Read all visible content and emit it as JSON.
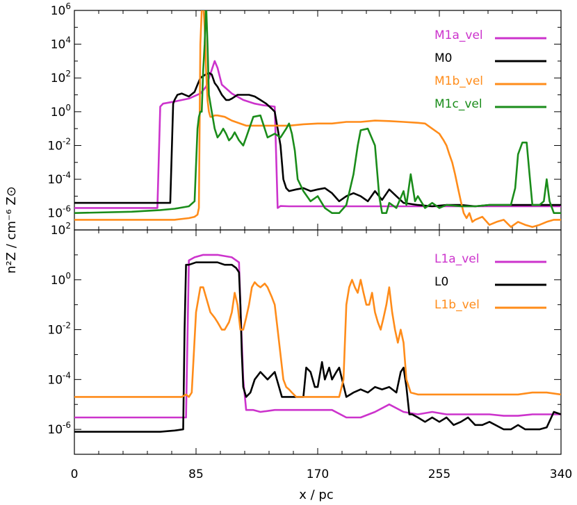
{
  "chart_data": [
    {
      "type": "line",
      "panel": "top",
      "xlim": [
        0,
        340
      ],
      "ylim": [
        1e-07,
        1000000.0
      ],
      "yscale": "log",
      "legend_placement": "top-right",
      "series": [
        {
          "name": "M1a_vel",
          "color": "#cc33cc",
          "x": [
            0,
            58,
            60,
            62,
            70,
            80,
            88,
            92,
            96,
            98,
            100,
            103,
            110,
            118,
            126,
            132,
            138,
            140,
            142,
            144,
            150,
            170,
            200,
            250,
            300,
            340
          ],
          "y": [
            2e-06,
            2e-06,
            2,
            3,
            4,
            6,
            12,
            30,
            300,
            1000,
            400,
            40,
            12,
            5,
            3,
            2.4,
            2.1,
            2,
            2e-06,
            2.6e-06,
            2.5e-06,
            2.5e-06,
            2.5e-06,
            2.5e-06,
            2.5e-06,
            2.5e-06
          ]
        },
        {
          "name": "M0",
          "color": "#000000",
          "x": [
            0,
            67,
            69,
            70,
            72,
            75,
            80,
            84,
            86,
            88,
            91,
            94,
            96,
            98,
            100,
            103,
            106,
            108,
            110,
            114,
            118,
            122,
            126,
            130,
            134,
            138,
            140,
            142,
            144,
            146,
            148,
            150,
            155,
            160,
            165,
            170,
            175,
            180,
            185,
            190,
            195,
            200,
            205,
            210,
            215,
            220,
            225,
            230,
            240,
            250,
            260,
            270,
            280,
            290,
            300,
            310,
            320,
            330,
            340
          ],
          "y": [
            4e-06,
            4e-06,
            3,
            5,
            10,
            12,
            8,
            15,
            40,
            100,
            150,
            200,
            160,
            50,
            30,
            10,
            5,
            5,
            6,
            10,
            10,
            10,
            8,
            5,
            3,
            1.5,
            1,
            0.1,
            0.01,
            0.0001,
            3e-05,
            2e-05,
            2.5e-05,
            3e-05,
            2e-05,
            2.5e-05,
            3e-05,
            1.5e-05,
            5e-06,
            1e-05,
            1.5e-05,
            1e-05,
            5e-06,
            2e-05,
            6e-06,
            2.5e-05,
            1e-05,
            4e-06,
            3e-06,
            2.5e-06,
            3e-06,
            3e-06,
            2.5e-06,
            3e-06,
            3e-06,
            3e-06,
            3e-06,
            3e-06,
            3e-06
          ]
        },
        {
          "name": "M1b_vel",
          "color": "#ff8c1a",
          "x": [
            0,
            60,
            70,
            80,
            84,
            86,
            87,
            88,
            89,
            90,
            91,
            92,
            93,
            94,
            95,
            96,
            98,
            100,
            105,
            110,
            120,
            130,
            140,
            150,
            160,
            170,
            180,
            190,
            200,
            210,
            220,
            230,
            240,
            245,
            250,
            255,
            258,
            260,
            262,
            264,
            266,
            268,
            270,
            272,
            274,
            276,
            278,
            280,
            285,
            290,
            295,
            300,
            305,
            310,
            315,
            320,
            325,
            330,
            335,
            340
          ],
          "y": [
            4e-07,
            4e-07,
            4e-07,
            5e-07,
            6e-07,
            8e-07,
            2e-06,
            10000.0,
            1000000.0,
            3000000.0,
            100000.0,
            300,
            5,
            1,
            0.5,
            0.5,
            0.6,
            0.6,
            0.5,
            0.3,
            0.15,
            0.15,
            0.15,
            0.15,
            0.18,
            0.2,
            0.2,
            0.25,
            0.25,
            0.3,
            0.28,
            0.25,
            0.22,
            0.2,
            0.1,
            0.05,
            0.02,
            0.01,
            0.003,
            0.001,
            0.0002,
            3e-05,
            5e-06,
            1e-06,
            5e-07,
            1e-06,
            3e-07,
            4e-07,
            6e-07,
            2e-07,
            3e-07,
            4e-07,
            1.5e-07,
            3e-07,
            2e-07,
            1.5e-07,
            2e-07,
            3e-07,
            4e-07,
            4e-07
          ]
        },
        {
          "name": "M1c_vel",
          "color": "#1a8c1a",
          "x": [
            0,
            40,
            60,
            70,
            80,
            84,
            86,
            87,
            88,
            89,
            90,
            91,
            92,
            93,
            94,
            96,
            98,
            100,
            102,
            104,
            106,
            108,
            110,
            112,
            115,
            118,
            120,
            125,
            130,
            135,
            140,
            144,
            148,
            150,
            152,
            154,
            156,
            160,
            165,
            170,
            175,
            180,
            185,
            190,
            195,
            198,
            200,
            205,
            210,
            213,
            215,
            218,
            220,
            225,
            230,
            232,
            235,
            238,
            240,
            245,
            250,
            255,
            260,
            270,
            280,
            290,
            300,
            305,
            308,
            310,
            313,
            316,
            318,
            320,
            325,
            328,
            330,
            332,
            335,
            340
          ],
          "y": [
            1e-06,
            1.2e-06,
            1.5e-06,
            1.8e-06,
            2.5e-06,
            5e-06,
            0.1,
            0.5,
            1,
            1,
            300,
            10000.0,
            3000000.0,
            10000.0,
            10,
            1,
            0.1,
            0.03,
            0.05,
            0.1,
            0.05,
            0.02,
            0.03,
            0.06,
            0.02,
            0.01,
            0.03,
            0.5,
            0.6,
            0.03,
            0.05,
            0.03,
            0.1,
            0.2,
            0.05,
            0.005,
            0.0001,
            2e-05,
            5e-06,
            1e-05,
            2e-06,
            1e-06,
            1e-06,
            3e-06,
            0.0002,
            0.01,
            0.08,
            0.1,
            0.01,
            1e-05,
            1e-06,
            1e-06,
            4e-06,
            2e-06,
            2e-05,
            3e-06,
            0.0002,
            5e-06,
            1e-05,
            2e-06,
            4e-06,
            2e-06,
            3e-06,
            2.5e-06,
            2.5e-06,
            3e-06,
            3e-06,
            3e-06,
            3e-05,
            0.003,
            0.015,
            0.015,
            0.0002,
            3e-06,
            3e-06,
            5e-06,
            0.0001,
            5e-06,
            1e-06,
            1e-06
          ]
        }
      ]
    },
    {
      "type": "line",
      "panel": "bottom",
      "xlim": [
        0,
        340
      ],
      "ylim": [
        1e-07,
        100.0
      ],
      "yscale": "log",
      "legend_placement": "top-right",
      "series": [
        {
          "name": "L1a_vel",
          "color": "#cc33cc",
          "x": [
            0,
            70,
            76,
            78,
            80,
            84,
            90,
            100,
            110,
            115,
            116,
            118,
            120,
            125,
            130,
            140,
            150,
            160,
            170,
            180,
            190,
            200,
            210,
            220,
            230,
            240,
            250,
            260,
            270,
            280,
            290,
            300,
            310,
            320,
            330,
            340
          ],
          "y": [
            3e-06,
            3e-06,
            3e-06,
            3e-06,
            6,
            8,
            10,
            10,
            8,
            5,
            0.1,
            0.0001,
            6e-06,
            6e-06,
            5e-06,
            6e-06,
            6e-06,
            6e-06,
            6e-06,
            6e-06,
            3e-06,
            3e-06,
            5e-06,
            1e-05,
            5e-06,
            4e-06,
            5e-06,
            4e-06,
            4e-06,
            4e-06,
            4e-06,
            3.5e-06,
            3.5e-06,
            4e-06,
            4e-06,
            4e-06
          ]
        },
        {
          "name": "L0",
          "color": "#000000",
          "x": [
            0,
            60,
            70,
            76,
            77,
            78,
            80,
            85,
            90,
            100,
            105,
            110,
            113,
            115,
            116,
            117,
            118,
            120,
            123,
            126,
            130,
            135,
            140,
            145,
            150,
            155,
            160,
            162,
            165,
            168,
            170,
            173,
            175,
            178,
            180,
            183,
            185,
            190,
            195,
            200,
            205,
            210,
            215,
            220,
            225,
            228,
            230,
            232,
            234,
            236,
            240,
            245,
            250,
            255,
            260,
            265,
            270,
            275,
            280,
            285,
            290,
            300,
            305,
            310,
            315,
            320,
            325,
            330,
            335,
            340
          ],
          "y": [
            8e-07,
            8e-07,
            9e-07,
            1e-06,
            0.01,
            4,
            4,
            5,
            5,
            5,
            4,
            4,
            3,
            2,
            0.1,
            0.001,
            5e-05,
            2e-05,
            3e-05,
            0.0001,
            0.0002,
            0.0001,
            0.0002,
            2e-05,
            2e-05,
            2e-05,
            2e-05,
            0.0003,
            0.0002,
            5e-05,
            5e-05,
            0.0005,
            0.0001,
            0.0003,
            0.0001,
            0.0002,
            0.0003,
            2e-05,
            3e-05,
            4e-05,
            3e-05,
            5e-05,
            4e-05,
            5e-05,
            3e-05,
            0.0002,
            0.0003,
            5e-05,
            4e-06,
            4e-06,
            3e-06,
            2e-06,
            3e-06,
            2e-06,
            3e-06,
            1.5e-06,
            2e-06,
            3e-06,
            1.5e-06,
            1.5e-06,
            2e-06,
            1e-06,
            1e-06,
            1.5e-06,
            1e-06,
            1e-06,
            1e-06,
            1.2e-06,
            5e-06,
            4e-06
          ]
        },
        {
          "name": "L1b_vel",
          "color": "#ff8c1a",
          "x": [
            0,
            50,
            75,
            78,
            80,
            82,
            85,
            88,
            90,
            92,
            95,
            98,
            100,
            103,
            105,
            108,
            110,
            112,
            114,
            116,
            118,
            120,
            122,
            124,
            126,
            128,
            130,
            133,
            135,
            138,
            140,
            142,
            144,
            146,
            148,
            150,
            152,
            155,
            160,
            170,
            180,
            185,
            188,
            190,
            192,
            194,
            196,
            198,
            200,
            202,
            204,
            206,
            208,
            210,
            212,
            214,
            216,
            218,
            220,
            222,
            224,
            226,
            228,
            230,
            232,
            235,
            240,
            250,
            260,
            270,
            280,
            290,
            300,
            310,
            320,
            330,
            340
          ],
          "y": [
            2e-05,
            2e-05,
            2e-05,
            2.5e-05,
            2e-05,
            3e-05,
            0.05,
            0.5,
            0.5,
            0.2,
            0.05,
            0.03,
            0.02,
            0.01,
            0.01,
            0.02,
            0.05,
            0.3,
            0.1,
            0.01,
            0.01,
            0.03,
            0.1,
            0.5,
            0.8,
            0.6,
            0.5,
            0.7,
            0.5,
            0.2,
            0.1,
            0.01,
            0.001,
            0.0001,
            5e-05,
            4e-05,
            3e-05,
            2e-05,
            2e-05,
            2e-05,
            2e-05,
            2e-05,
            0.0001,
            0.1,
            0.5,
            1,
            0.5,
            0.3,
            1,
            0.3,
            0.1,
            0.1,
            0.3,
            0.05,
            0.02,
            0.01,
            0.03,
            0.1,
            0.5,
            0.05,
            0.01,
            0.003,
            0.01,
            0.003,
            0.0001,
            3e-05,
            2.5e-05,
            2.5e-05,
            2.5e-05,
            2.5e-05,
            2.5e-05,
            2.5e-05,
            2.5e-05,
            2.5e-05,
            3e-05,
            3e-05,
            2.5e-05
          ]
        }
      ]
    }
  ],
  "axes": {
    "xlabel": "x / pc",
    "ylabel": "n²Z / cm⁻⁶ Z⊙",
    "x_ticks": [
      "0",
      "85",
      "170",
      "255",
      "340"
    ],
    "top_y_ticks": [
      {
        "base": "10",
        "exp": "6"
      },
      {
        "base": "10",
        "exp": "4"
      },
      {
        "base": "10",
        "exp": "2"
      },
      {
        "base": "10",
        "exp": "0"
      },
      {
        "base": "10",
        "exp": "-2"
      },
      {
        "base": "10",
        "exp": "-4"
      },
      {
        "base": "10",
        "exp": "-6"
      }
    ],
    "bottom_y_ticks": [
      {
        "base": "10",
        "exp": "2"
      },
      {
        "base": "10",
        "exp": "0"
      },
      {
        "base": "10",
        "exp": "-2"
      },
      {
        "base": "10",
        "exp": "-4"
      },
      {
        "base": "10",
        "exp": "-6"
      }
    ]
  }
}
